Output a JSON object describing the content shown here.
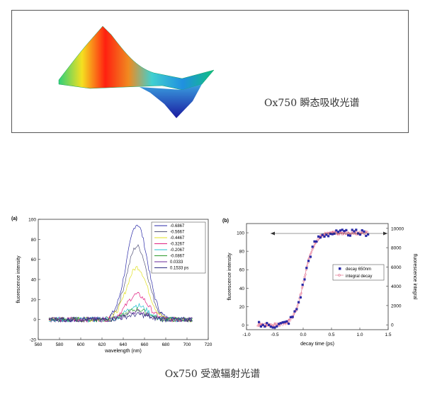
{
  "top_caption": "Ox750 瞬态吸收光谱",
  "bottom_caption": "Ox750 受激辐射光谱",
  "chart_data": [
    {
      "type": "line",
      "panel_label": "(a)",
      "xlabel": "wavelength (nm)",
      "ylabel": "fluorescence intensity",
      "xlim": [
        560,
        720
      ],
      "ylim": [
        -20,
        100
      ],
      "xticks": [
        "560",
        "580",
        "600",
        "620",
        "640",
        "660",
        "680",
        "700",
        "720"
      ],
      "yticks": [
        "-20",
        "0",
        "20",
        "40",
        "60",
        "80",
        "100"
      ],
      "legend_position": "top-right",
      "series": [
        {
          "name": "-0.6867",
          "color": "#2a2aa8",
          "peak": 95
        },
        {
          "name": "-0.5667",
          "color": "#55557a",
          "peak": 73
        },
        {
          "name": "-0.4467",
          "color": "#e0e020",
          "peak": 52
        },
        {
          "name": "-0.3267",
          "color": "#e02080",
          "peak": 25
        },
        {
          "name": "-0.2067",
          "color": "#20c0d0",
          "peak": 14
        },
        {
          "name": "-0.0867",
          "color": "#2a9a2a",
          "peak": 10
        },
        {
          "name": "0.0333",
          "color": "#6a2a9a",
          "peak": 8
        },
        {
          "name": "0.1533 ps",
          "color": "#2a2a80",
          "peak": 5
        }
      ],
      "peak_center_nm": 653,
      "range_nm": [
        570,
        705
      ]
    },
    {
      "type": "scatter",
      "panel_label": "(b)",
      "xlabel": "decay time (ps)",
      "ylabel": "fluorescence intensity",
      "ylabel_right": "fluorescence integral",
      "xlim": [
        -1.0,
        1.5
      ],
      "ylim": [
        -5,
        110
      ],
      "ylim_right": [
        -500,
        10500
      ],
      "xticks": [
        "-1.0",
        "-0.5",
        "0.0",
        "0.5",
        "1.0",
        "1.5"
      ],
      "yticks": [
        "0",
        "20",
        "40",
        "60",
        "80",
        "100"
      ],
      "yticks_right": [
        "0",
        "2000",
        "4000",
        "6000",
        "8000",
        "10000"
      ],
      "legend_position": "center-right",
      "series": [
        {
          "name": "decay 650nm",
          "color": "#2a2aa8",
          "marker": "square"
        },
        {
          "name": "integral decay",
          "color": "#e06080",
          "marker": "open-circle"
        }
      ]
    }
  ]
}
